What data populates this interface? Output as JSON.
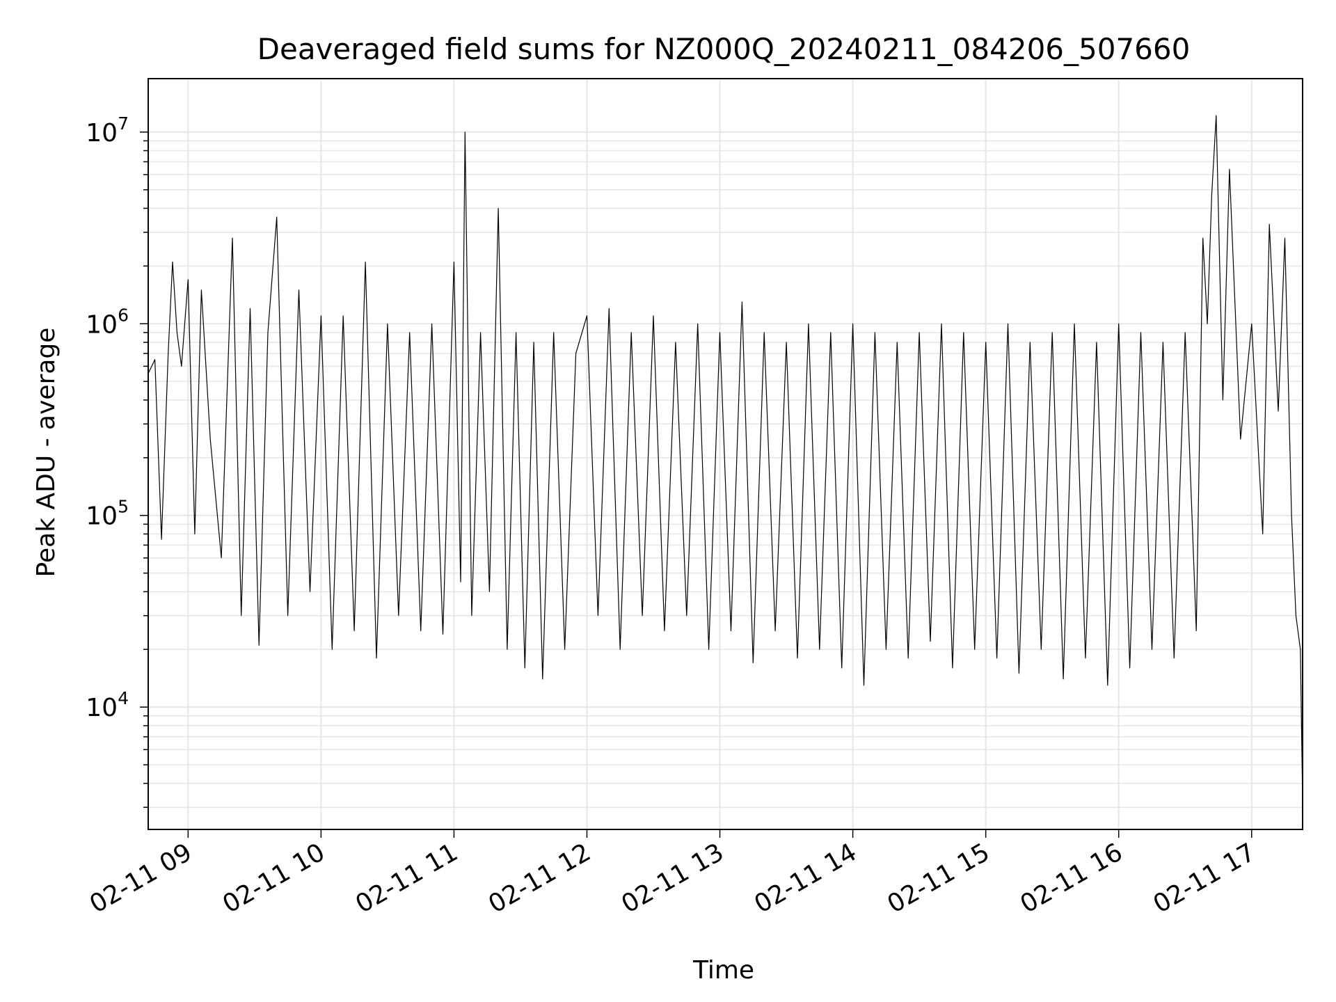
{
  "chart_data": {
    "type": "line",
    "title": "Deaveraged field sums for NZ000Q_20240211_084206_507660",
    "xlabel": "Time",
    "ylabel": "Peak ADU - average",
    "yscale": "log",
    "ylim": [
      2300,
      19000000
    ],
    "xlim": [
      "02-11 08:42",
      "02-11 17:23"
    ],
    "grid": true,
    "line_color": "#000000",
    "grid_color": "#e6e6e6",
    "x_ticks": [
      "02-11 09",
      "02-11 10",
      "02-11 11",
      "02-11 12",
      "02-11 13",
      "02-11 14",
      "02-11 15",
      "02-11 16",
      "02-11 17"
    ],
    "y_ticks": [
      {
        "value": 10000,
        "base": "10",
        "exp": "4"
      },
      {
        "value": 100000,
        "base": "10",
        "exp": "5"
      },
      {
        "value": 1000000,
        "base": "10",
        "exp": "6"
      },
      {
        "value": 10000000,
        "base": "10",
        "exp": "7"
      }
    ],
    "series": [
      {
        "x": [
          "08:42",
          "08:45",
          "08:48",
          "08:51",
          "08:53",
          "08:55",
          "08:57",
          "09:00",
          "09:03",
          "09:06",
          "09:10",
          "09:15",
          "09:20",
          "09:24",
          "09:28",
          "09:32",
          "09:36",
          "09:40",
          "09:45",
          "09:50",
          "09:55",
          "10:00",
          "10:05",
          "10:10",
          "10:15",
          "10:20",
          "10:25",
          "10:30",
          "10:35",
          "10:40",
          "10:45",
          "10:50",
          "10:55",
          "11:00",
          "11:03",
          "11:05",
          "11:08",
          "11:12",
          "11:16",
          "11:20",
          "11:24",
          "11:28",
          "11:32",
          "11:36",
          "11:40",
          "11:45",
          "11:50",
          "11:55",
          "12:00",
          "12:05",
          "12:10",
          "12:15",
          "12:20",
          "12:25",
          "12:30",
          "12:35",
          "12:40",
          "12:45",
          "12:50",
          "12:55",
          "13:00",
          "13:05",
          "13:10",
          "13:15",
          "13:20",
          "13:25",
          "13:30",
          "13:35",
          "13:40",
          "13:45",
          "13:50",
          "13:55",
          "14:00",
          "14:05",
          "14:10",
          "14:15",
          "14:20",
          "14:25",
          "14:30",
          "14:35",
          "14:40",
          "14:45",
          "14:50",
          "14:55",
          "15:00",
          "15:05",
          "15:10",
          "15:15",
          "15:20",
          "15:25",
          "15:30",
          "15:35",
          "15:40",
          "15:45",
          "15:50",
          "15:55",
          "16:00",
          "16:05",
          "16:10",
          "16:15",
          "16:20",
          "16:25",
          "16:30",
          "16:35",
          "16:38",
          "16:40",
          "16:42",
          "16:44",
          "16:47",
          "16:50",
          "16:55",
          "17:00",
          "17:05",
          "17:08",
          "17:12",
          "17:15",
          "17:18",
          "17:20",
          "17:22",
          "17:23"
        ],
        "y": [
          550000,
          650000,
          75000,
          700000,
          2100000,
          900000,
          600000,
          1700000,
          80000,
          1500000,
          250000,
          60000,
          2800000,
          30000,
          1200000,
          21000,
          900000,
          3600000,
          30000,
          1500000,
          40000,
          1100000,
          20000,
          1100000,
          25000,
          2100000,
          18000,
          1000000,
          30000,
          900000,
          25000,
          1000000,
          24000,
          2100000,
          45000,
          10000000,
          30000,
          900000,
          40000,
          4000000,
          20000,
          900000,
          16000,
          800000,
          14000,
          900000,
          20000,
          700000,
          1100000,
          30000,
          1200000,
          20000,
          900000,
          30000,
          1100000,
          25000,
          800000,
          30000,
          1000000,
          20000,
          900000,
          25000,
          1300000,
          17000,
          900000,
          25000,
          800000,
          18000,
          1000000,
          20000,
          900000,
          16000,
          1000000,
          13000,
          900000,
          20000,
          800000,
          18000,
          900000,
          22000,
          1000000,
          16000,
          900000,
          20000,
          800000,
          18000,
          1000000,
          15000,
          800000,
          20000,
          900000,
          14000,
          1000000,
          18000,
          800000,
          13000,
          1000000,
          16000,
          900000,
          20000,
          800000,
          18000,
          900000,
          25000,
          2800000,
          1000000,
          4700000,
          12200000,
          400000,
          6400000,
          250000,
          1000000,
          80000,
          3300000,
          350000,
          2800000,
          100000,
          30000,
          20000,
          3200
        ]
      }
    ]
  }
}
